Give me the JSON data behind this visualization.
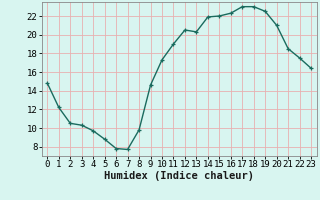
{
  "x": [
    0,
    1,
    2,
    3,
    4,
    5,
    6,
    7,
    8,
    9,
    10,
    11,
    12,
    13,
    14,
    15,
    16,
    17,
    18,
    19,
    20,
    21,
    22,
    23
  ],
  "y": [
    14.8,
    12.2,
    10.5,
    10.3,
    9.7,
    8.8,
    7.8,
    7.7,
    9.8,
    14.6,
    17.3,
    19.0,
    20.5,
    20.3,
    21.9,
    22.0,
    22.3,
    23.0,
    23.0,
    22.5,
    21.0,
    18.5,
    17.5,
    16.4
  ],
  "line_color": "#1a6b5e",
  "marker": "+",
  "marker_size": 3.5,
  "bg_color": "#d8f5f0",
  "grid_color": "#e8b0b0",
  "xlabel": "Humidex (Indice chaleur)",
  "ylim": [
    7.0,
    23.5
  ],
  "yticks": [
    8,
    10,
    12,
    14,
    16,
    18,
    20,
    22
  ],
  "xticks": [
    0,
    1,
    2,
    3,
    4,
    5,
    6,
    7,
    8,
    9,
    10,
    11,
    12,
    13,
    14,
    15,
    16,
    17,
    18,
    19,
    20,
    21,
    22,
    23
  ],
  "xlabel_fontsize": 7.5,
  "tick_fontsize": 6.5,
  "line_width": 1.0,
  "xlim": [
    -0.5,
    23.5
  ]
}
